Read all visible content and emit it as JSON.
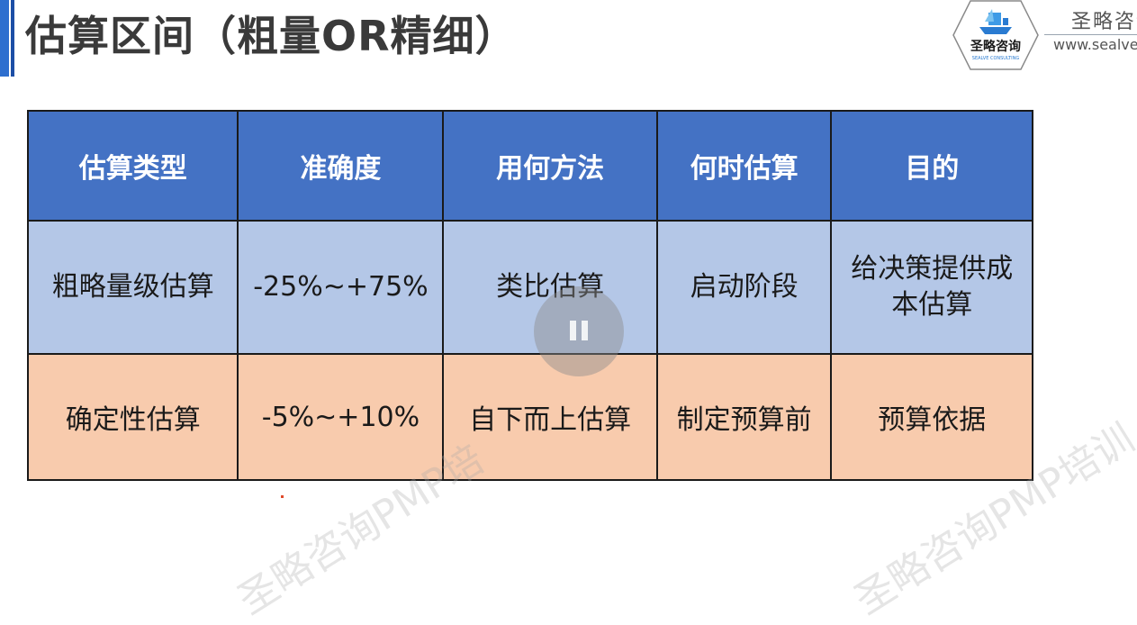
{
  "slide": {
    "title": "估算区间（粗量OR精细）"
  },
  "brand": {
    "logo_text": "圣略咨询",
    "logo_subtext": "SEALVE CONSULTING",
    "name_cn": "圣略咨询",
    "url": "www.sealve"
  },
  "table": {
    "headers": [
      "估算类型",
      "准确度",
      "用何方法",
      "何时估算",
      "目的"
    ],
    "rows": [
      [
        "粗略量级估算",
        "-25%~+75%",
        "类比估算",
        "启动阶段",
        "给决策提供成本估算"
      ],
      [
        "确定性估算",
        "-5%~+10%",
        "自下而上估算",
        "制定预算前",
        "预算依据"
      ]
    ]
  },
  "watermark": {
    "left": "圣略咨询PMP培",
    "right": "圣略咨询PMP培训"
  },
  "colors": {
    "header_bg": "#4472c4",
    "row1_bg": "#b4c7e7",
    "row2_bg": "#f8cbad",
    "accent": "#2e6fcf"
  }
}
